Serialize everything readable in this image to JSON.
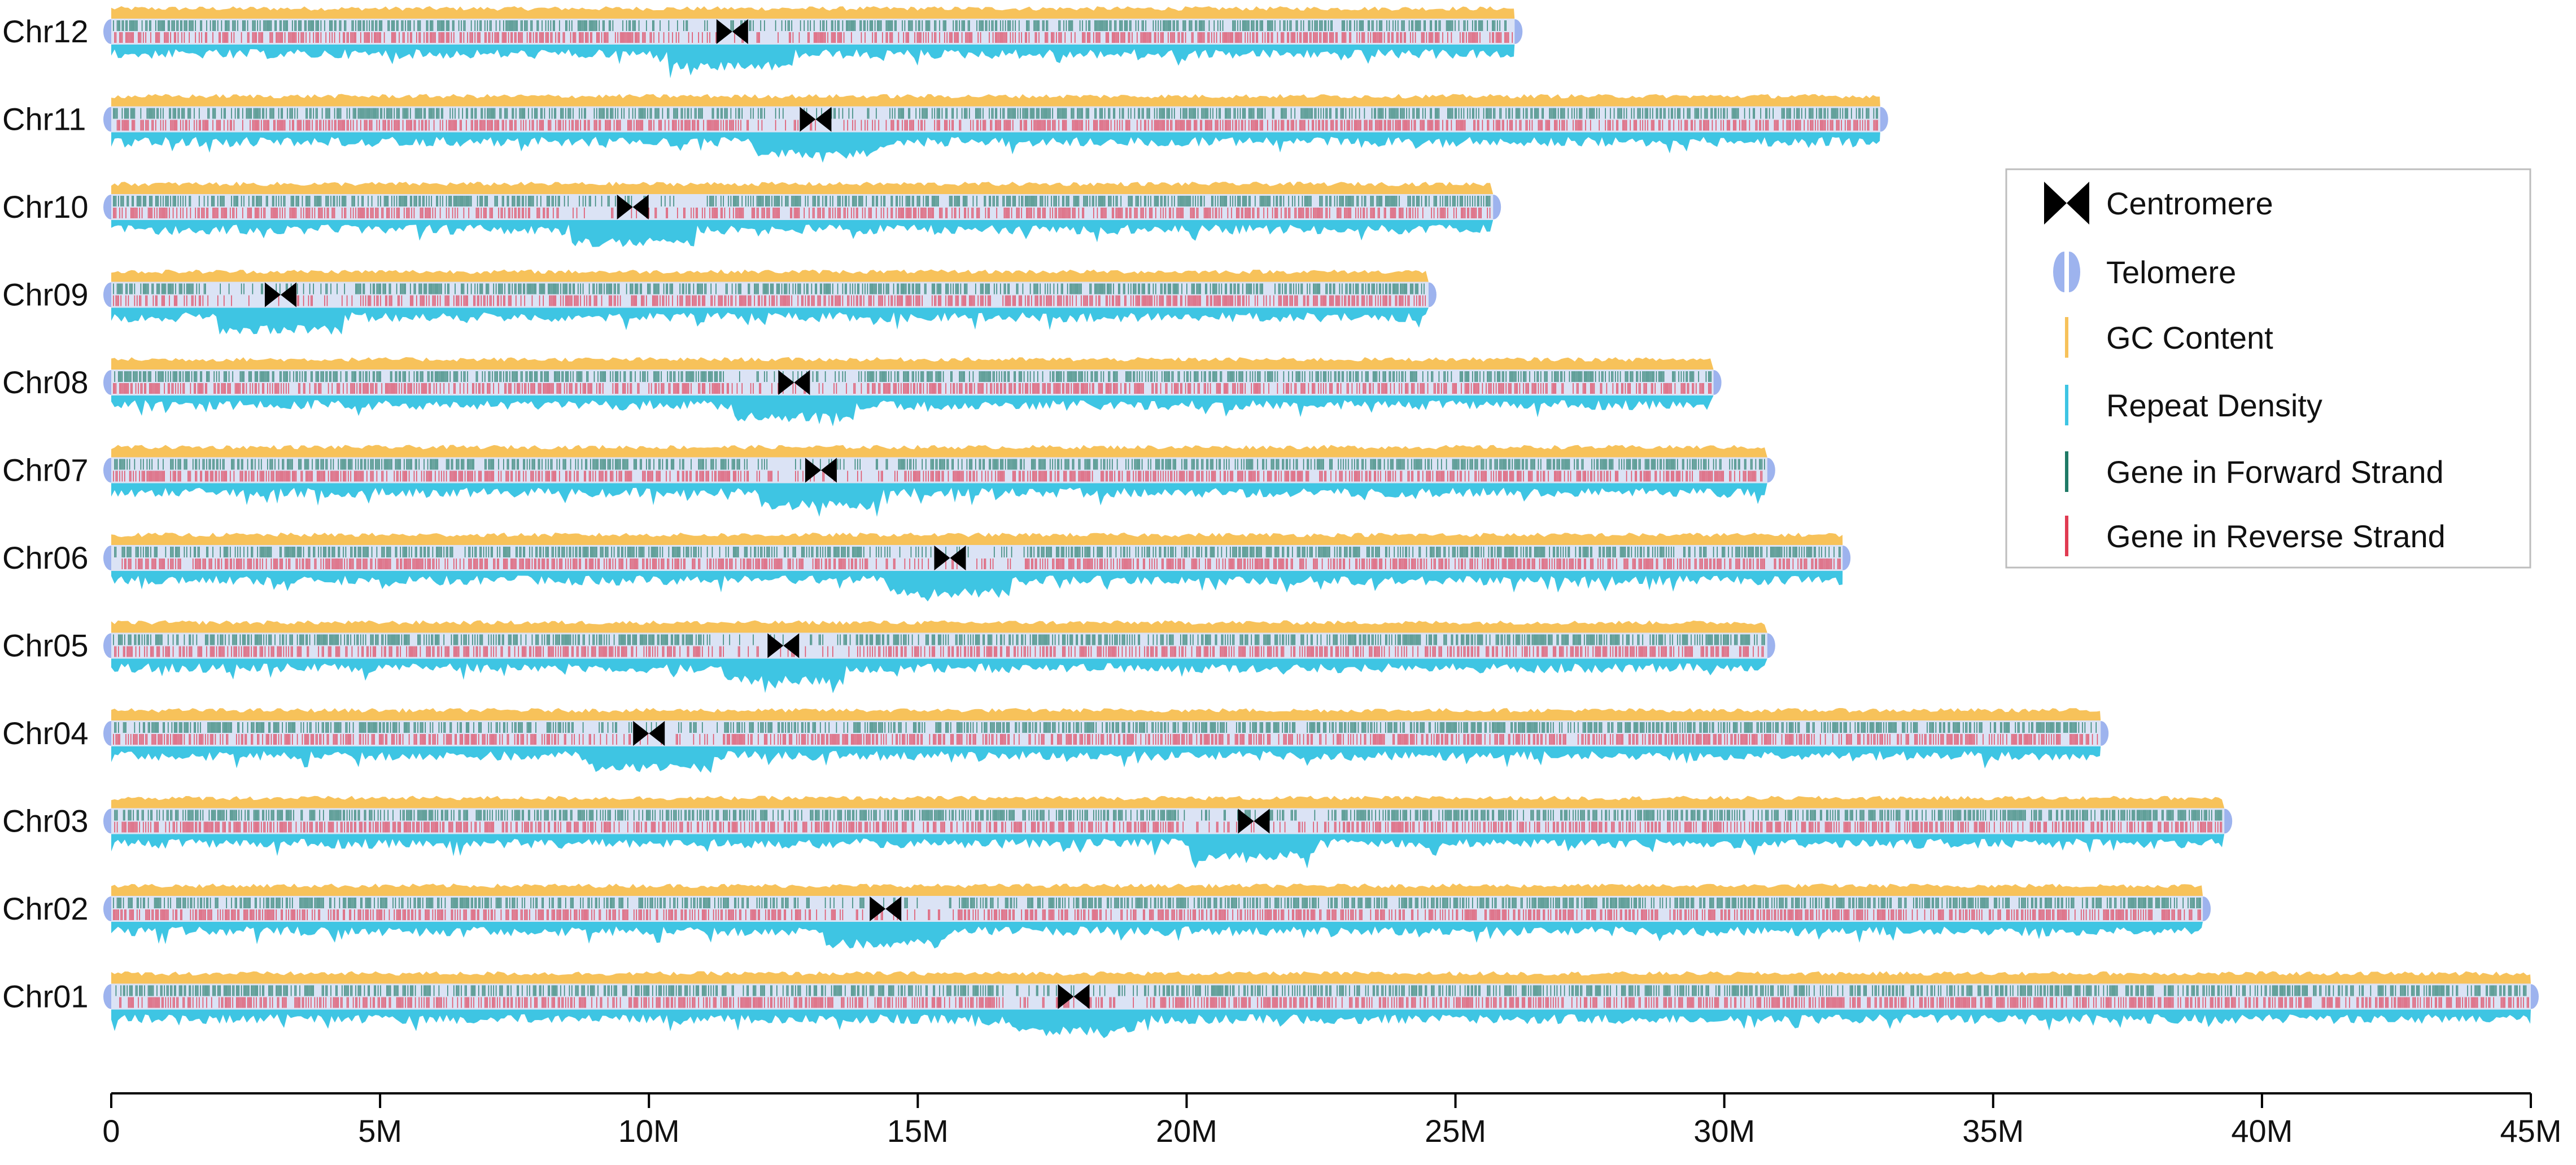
{
  "chart_data": {
    "type": "chromosome_map",
    "x_axis": {
      "unit": "bp",
      "range": [
        0,
        45000000
      ],
      "ticks": [
        {
          "value": 0,
          "label": "0"
        },
        {
          "value": 5000000,
          "label": "5M"
        },
        {
          "value": 10000000,
          "label": "10M"
        },
        {
          "value": 15000000,
          "label": "15M"
        },
        {
          "value": 20000000,
          "label": "20M"
        },
        {
          "value": 25000000,
          "label": "25M"
        },
        {
          "value": 30000000,
          "label": "30M"
        },
        {
          "value": 35000000,
          "label": "35M"
        },
        {
          "value": 40000000,
          "label": "40M"
        },
        {
          "value": 45000000,
          "label": "45M"
        }
      ]
    },
    "chromosomes": [
      {
        "name": "Chr12",
        "length": 26100000,
        "centromere": 11550000
      },
      {
        "name": "Chr11",
        "length": 32900000,
        "centromere": 13100000
      },
      {
        "name": "Chr10",
        "length": 25700000,
        "centromere": 9700000
      },
      {
        "name": "Chr09",
        "length": 24500000,
        "centromere": 3150000
      },
      {
        "name": "Chr08",
        "length": 29800000,
        "centromere": 12700000
      },
      {
        "name": "Chr07",
        "length": 30800000,
        "centromere": 13200000
      },
      {
        "name": "Chr06",
        "length": 32200000,
        "centromere": 15600000
      },
      {
        "name": "Chr05",
        "length": 30800000,
        "centromere": 12500000
      },
      {
        "name": "Chr04",
        "length": 37000000,
        "centromere": 10000000
      },
      {
        "name": "Chr03",
        "length": 39300000,
        "centromere": 21250000
      },
      {
        "name": "Chr02",
        "length": 38900000,
        "centromere": 14400000
      },
      {
        "name": "Chr01",
        "length": 45000000,
        "centromere": 17900000
      }
    ],
    "legend": {
      "placement": "right",
      "items": [
        {
          "key": "centromere",
          "label": "Centromere",
          "color": "#000000"
        },
        {
          "key": "telomere",
          "label": "Telomere",
          "color": "#9db3ee"
        },
        {
          "key": "gc",
          "label": "GC Content",
          "color": "#f7c25a"
        },
        {
          "key": "repeat",
          "label": "Repeat Density",
          "color": "#3ec5e3"
        },
        {
          "key": "forward",
          "label": "Gene in Forward Strand",
          "color": "#1f7a66"
        },
        {
          "key": "reverse",
          "label": "Gene in Reverse Strand",
          "color": "#e03b52"
        }
      ]
    },
    "colors": {
      "body": "#dbe3f5",
      "gc": "#f7c25a",
      "repeat": "#3ec5e3",
      "forward": "#1f7a66",
      "reverse": "#e03b52",
      "telomere": "#9db3ee",
      "centromere": "#000000",
      "axis": "#000000"
    }
  }
}
